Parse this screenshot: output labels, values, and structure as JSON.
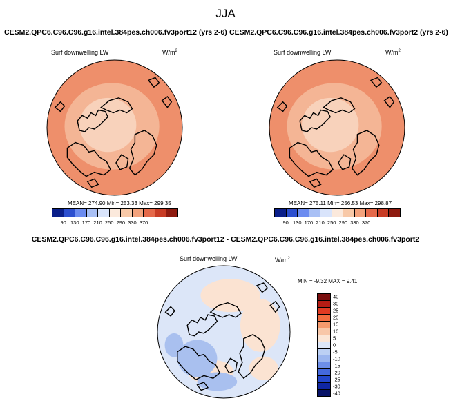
{
  "title": "JJA",
  "panels": [
    {
      "case": "CESM2.QPC6.C96.C96.g16.intel.384pes.ch006.fv3port12 (yrs 2-6)",
      "variable": "Surf downwelling LW",
      "unit_base": "W/m",
      "unit_exp": "2",
      "stats": "MEAN= 274.90  Min= 253.33  Max= 299.35",
      "colorbar_colors": [
        "#0a1f8a",
        "#2c4fcf",
        "#6c8cf0",
        "#a9c0f5",
        "#d9e4fb",
        "#fbe9dc",
        "#f8c9a8",
        "#f3a27c",
        "#e5694a",
        "#c83c25",
        "#8e1b10"
      ],
      "tick_labels": [
        "90",
        "130",
        "170",
        "210",
        "250",
        "290",
        "330",
        "370"
      ],
      "map_colors": {
        "outer": "#ee8f6b",
        "inner": "#f4b595",
        "center": "#f8d2bb"
      }
    },
    {
      "case": "CESM2.QPC6.C96.C96.g16.intel.384pes.ch006.fv3port2 (yrs 2-6)",
      "variable": "Surf downwelling LW",
      "unit_base": "W/m",
      "unit_exp": "2",
      "stats": "MEAN= 275.11  Min= 256.53  Max= 298.87",
      "colorbar_colors": [
        "#0a1f8a",
        "#2c4fcf",
        "#6c8cf0",
        "#a9c0f5",
        "#d9e4fb",
        "#fbe9dc",
        "#f8c9a8",
        "#f3a27c",
        "#e5694a",
        "#c83c25",
        "#8e1b10"
      ],
      "tick_labels": [
        "90",
        "130",
        "170",
        "210",
        "250",
        "290",
        "330",
        "370"
      ],
      "map_colors": {
        "outer": "#ee8f6b",
        "inner": "#f4b595",
        "center": "#f8d2bb"
      }
    }
  ],
  "diff_panel": {
    "title": "CESM2.QPC6.C96.C96.g16.intel.384pes.ch006.fv3port12 - CESM2.QPC6.C96.C96.g16.intel.384pes.ch006.fv3port2",
    "variable": "Surf downwelling LW",
    "unit_base": "W/m",
    "unit_exp": "2",
    "stats": "MIN =  -9.32 MAX =   9.41",
    "colorbar_colors": [
      "#7a0f0f",
      "#b51c14",
      "#e03a22",
      "#f26c3f",
      "#f59a6d",
      "#f8c7a8",
      "#fbe6d6",
      "#dde7f8",
      "#bcd0f4",
      "#9cb6ef",
      "#6d8ee8",
      "#4468dd",
      "#2346cb",
      "#0f26a3",
      "#081368"
    ],
    "tick_labels": [
      "40",
      "30",
      "25",
      "20",
      "15",
      "10",
      "5",
      "0",
      "-5",
      "-10",
      "-15",
      "-20",
      "-25",
      "-30",
      "-40"
    ],
    "map_colors": {
      "base": "#dce6f8",
      "warm": "#fbe3d2",
      "cool": "#a9c0ef"
    }
  }
}
